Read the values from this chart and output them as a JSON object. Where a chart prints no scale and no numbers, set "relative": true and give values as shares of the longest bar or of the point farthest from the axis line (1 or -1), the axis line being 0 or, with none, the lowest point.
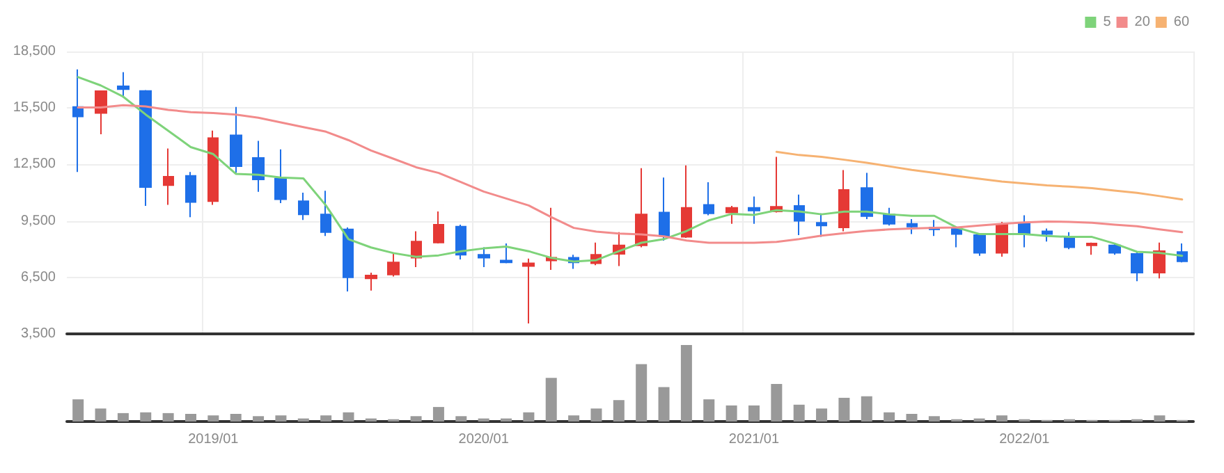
{
  "chart_data": [
    {
      "type": "candlestick",
      "categories": [
        null,
        null,
        null,
        null,
        null,
        null,
        "2019/01",
        null,
        null,
        null,
        null,
        null,
        null,
        null,
        null,
        null,
        null,
        null,
        "2020/01",
        null,
        null,
        null,
        null,
        null,
        null,
        null,
        null,
        null,
        null,
        null,
        "2021/01",
        null,
        null,
        null,
        null,
        null,
        null,
        null,
        null,
        null,
        null,
        null,
        "2022/01",
        null,
        null,
        null,
        null,
        null,
        null,
        null
      ],
      "ylim": [
        3500,
        18500
      ],
      "yticks": [
        {
          "value": 3500,
          "label": "3,500"
        },
        {
          "value": 6500,
          "label": "6,500"
        },
        {
          "value": 9500,
          "label": "9,500"
        },
        {
          "value": 12500,
          "label": "12,500"
        },
        {
          "value": 15500,
          "label": "15,500"
        },
        {
          "value": 18500,
          "label": "18,500"
        }
      ],
      "grid": true,
      "legend": "top right",
      "tick_labels": "y",
      "series": [
        {
          "ohlc": [
            [
              15550,
              17550,
              12100,
              15050
            ],
            [
              15230,
              16400,
              14100,
              16390
            ],
            [
              16650,
              17400,
              16050,
              16500
            ],
            [
              16400,
              16450,
              10300,
              11300
            ],
            [
              11400,
              13350,
              10350,
              11850
            ],
            [
              11900,
              12100,
              9700,
              10500
            ],
            [
              10550,
              14300,
              10350,
              13900
            ],
            [
              14050,
              15550,
              12050,
              12400
            ],
            [
              12850,
              13750,
              11050,
              11700
            ],
            [
              11750,
              13300,
              10450,
              10650
            ],
            [
              10550,
              11000,
              9550,
              9850
            ],
            [
              9850,
              11100,
              8700,
              8900
            ],
            [
              9050,
              9150,
              5750,
              6500
            ],
            [
              6450,
              6750,
              5800,
              6600
            ],
            [
              6650,
              7800,
              6550,
              7300
            ],
            [
              7550,
              8950,
              7050,
              8400
            ],
            [
              8350,
              10000,
              8300,
              9300
            ],
            [
              9200,
              9300,
              7450,
              7700
            ],
            [
              7700,
              8100,
              7050,
              7550
            ],
            [
              7400,
              8300,
              7250,
              7300
            ],
            [
              7100,
              7500,
              4050,
              7250
            ],
            [
              7400,
              10200,
              6900,
              7550
            ],
            [
              7550,
              7700,
              6950,
              7300
            ],
            [
              7250,
              8350,
              7150,
              7700
            ],
            [
              7750,
              8900,
              7100,
              8200
            ],
            [
              8200,
              12300,
              8100,
              9850
            ],
            [
              9950,
              11800,
              8450,
              8700
            ],
            [
              8650,
              12450,
              8600,
              10200
            ],
            [
              10350,
              11550,
              9800,
              9900
            ],
            [
              9950,
              10300,
              9350,
              10200
            ],
            [
              10200,
              10800,
              9350,
              10050
            ],
            [
              10000,
              12900,
              9950,
              10250
            ],
            [
              10300,
              10900,
              8750,
              9500
            ],
            [
              9400,
              9900,
              8650,
              9250
            ],
            [
              9150,
              12200,
              8950,
              11150
            ],
            [
              11250,
              12050,
              9600,
              9750
            ],
            [
              9850,
              10200,
              9250,
              9350
            ],
            [
              9350,
              9600,
              8800,
              9200
            ],
            [
              9150,
              9550,
              8700,
              9050
            ],
            [
              9150,
              9200,
              8100,
              8800
            ],
            [
              8750,
              8850,
              7650,
              7800
            ],
            [
              7800,
              9450,
              7600,
              9300
            ],
            [
              9350,
              9800,
              8100,
              8850
            ],
            [
              8950,
              9100,
              8400,
              8800
            ],
            [
              8600,
              8900,
              8000,
              8100
            ],
            [
              8200,
              8350,
              7700,
              8300
            ],
            [
              8200,
              8300,
              7700,
              7800
            ],
            [
              7750,
              7900,
              6300,
              6750
            ],
            [
              6750,
              8350,
              6450,
              7900
            ],
            [
              7850,
              8300,
              7300,
              7350
            ]
          ],
          "colors": [
            "#1e6fe8",
            "#e53935",
            "#1e6fe8",
            "#1e6fe8",
            "#e53935",
            "#1e6fe8",
            "#e53935",
            "#1e6fe8",
            "#1e6fe8",
            "#1e6fe8",
            "#1e6fe8",
            "#1e6fe8",
            "#1e6fe8",
            "#e53935",
            "#e53935",
            "#e53935",
            "#e53935",
            "#1e6fe8",
            "#1e6fe8",
            "#1e6fe8",
            "#e53935",
            "#e53935",
            "#1e6fe8",
            "#e53935",
            "#e53935",
            "#e53935",
            "#1e6fe8",
            "#e53935",
            "#1e6fe8",
            "#e53935",
            "#1e6fe8",
            "#e53935",
            "#1e6fe8",
            "#1e6fe8",
            "#e53935",
            "#1e6fe8",
            "#1e6fe8",
            "#1e6fe8",
            "#1e6fe8",
            "#1e6fe8",
            "#1e6fe8",
            "#e53935",
            "#1e6fe8",
            "#1e6fe8",
            "#1e6fe8",
            "#e53935",
            "#1e6fe8",
            "#1e6fe8",
            "#e53935",
            "#1e6fe8"
          ]
        },
        {
          "type": "line",
          "name": "5",
          "color": "#7ed37a",
          "values": [
            17140,
            16700,
            16100,
            15150,
            14290,
            13420,
            13050,
            12000,
            11950,
            11800,
            11760,
            10320,
            8530,
            8090,
            7790,
            7590,
            7670,
            7890,
            8040,
            8140,
            7890,
            7540,
            7340,
            7420,
            7890,
            8340,
            8530,
            8960,
            9530,
            9870,
            9820,
            10070,
            10000,
            9850,
            9990,
            9990,
            9850,
            9770,
            9770,
            9150,
            8800,
            8800,
            8800,
            8700,
            8650,
            8650,
            8300,
            7860,
            7800,
            7650
          ]
        },
        {
          "type": "line",
          "name": "20",
          "color": "#f28b8b",
          "values": [
            15530,
            15530,
            15650,
            15580,
            15400,
            15280,
            15230,
            15150,
            14980,
            14730,
            14480,
            14240,
            13790,
            13240,
            12800,
            12350,
            12050,
            11560,
            11060,
            10690,
            10320,
            9700,
            9130,
            8930,
            8830,
            8780,
            8680,
            8460,
            8340,
            8340,
            8340,
            8390,
            8530,
            8720,
            8850,
            8970,
            9050,
            9100,
            9130,
            9150,
            9250,
            9350,
            9420,
            9470,
            9450,
            9400,
            9300,
            9220,
            9050,
            8900
          ]
        },
        {
          "type": "line",
          "name": "60",
          "color": "#f6b272",
          "values": [
            null,
            null,
            null,
            null,
            null,
            null,
            null,
            null,
            null,
            null,
            null,
            null,
            null,
            null,
            null,
            null,
            null,
            null,
            null,
            null,
            null,
            null,
            null,
            null,
            null,
            null,
            null,
            null,
            null,
            null,
            null,
            13170,
            13000,
            12900,
            12750,
            12590,
            12400,
            12210,
            12050,
            11890,
            11740,
            11590,
            11490,
            11390,
            11320,
            11240,
            11110,
            10990,
            10820,
            10640
          ]
        }
      ]
    },
    {
      "type": "bar",
      "relative": true,
      "tick_labels": "x",
      "color": "#999999",
      "categories": [
        null,
        null,
        null,
        null,
        null,
        null,
        "2019/01",
        null,
        null,
        null,
        null,
        null,
        null,
        null,
        null,
        null,
        null,
        null,
        "2020/01",
        null,
        null,
        null,
        null,
        null,
        null,
        null,
        null,
        null,
        null,
        null,
        "2021/01",
        null,
        null,
        null,
        null,
        null,
        null,
        null,
        null,
        null,
        null,
        null,
        "2022/01",
        null,
        null,
        null,
        null,
        null,
        null,
        null
      ],
      "values": [
        0.29,
        0.17,
        0.11,
        0.12,
        0.11,
        0.1,
        0.08,
        0.1,
        0.07,
        0.08,
        0.04,
        0.08,
        0.12,
        0.04,
        0.03,
        0.07,
        0.19,
        0.07,
        0.04,
        0.04,
        0.12,
        0.57,
        0.08,
        0.17,
        0.28,
        0.75,
        0.45,
        1.0,
        0.29,
        0.21,
        0.21,
        0.49,
        0.22,
        0.17,
        0.31,
        0.33,
        0.12,
        0.1,
        0.07,
        0.03,
        0.04,
        0.08,
        0.03,
        0.02,
        0.03,
        0.02,
        0.02,
        0.03,
        0.08,
        0.02
      ]
    }
  ]
}
